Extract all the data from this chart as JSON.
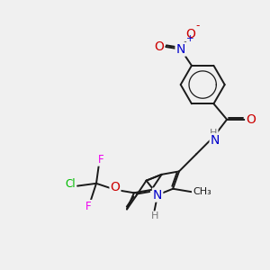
{
  "bg_color": "#f0f0f0",
  "bond_color": "#1a1a1a",
  "bond_width": 1.4,
  "atom_colors": {
    "N": "#0000cc",
    "O": "#cc0000",
    "F": "#ee00ee",
    "Cl": "#00bb00",
    "H": "#777777",
    "C": "#1a1a1a"
  },
  "font_size": 8.5,
  "fig_width": 3.0,
  "fig_height": 3.0,
  "dpi": 100
}
